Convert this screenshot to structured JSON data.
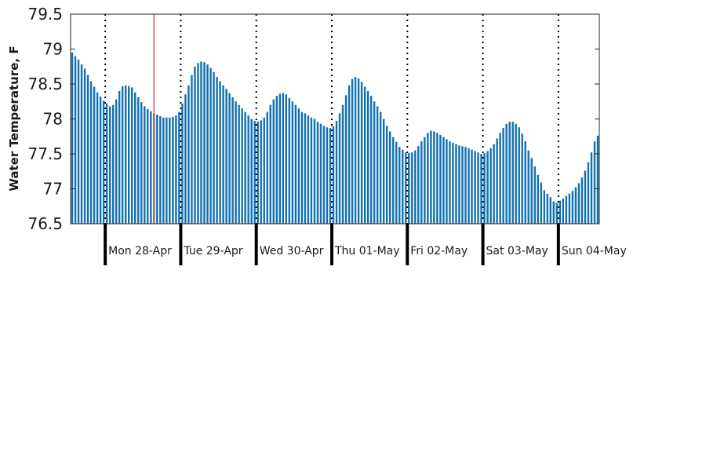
{
  "chart_data": {
    "type": "bar",
    "ylabel": "Water Temperature, F",
    "xlabel": "",
    "ylim": [
      76.5,
      79.5
    ],
    "yticks": [
      "76.5",
      "77",
      "77.5",
      "78",
      "78.5",
      "79",
      "79.5"
    ],
    "grid": false,
    "bar_color": "#1170b0",
    "marker_color": "#e05a5a",
    "day_labels": [
      "Mon 28-Apr",
      "Tue 29-Apr",
      "Wed 30-Apr",
      "Thu 01-May",
      "Fri 02-May",
      "Sat 03-May",
      "Sun 04-May"
    ],
    "points_per_day": 24,
    "leading_points": 11,
    "current_time_index": 26,
    "values": [
      78.95,
      78.9,
      78.85,
      78.78,
      78.72,
      78.63,
      78.54,
      78.46,
      78.38,
      78.32,
      78.26,
      78.22,
      78.18,
      78.2,
      78.28,
      78.4,
      78.47,
      78.48,
      78.47,
      78.45,
      78.38,
      78.31,
      78.24,
      78.18,
      78.14,
      78.11,
      78.08,
      78.06,
      78.04,
      78.02,
      78.02,
      78.02,
      78.03,
      78.05,
      78.1,
      78.22,
      78.35,
      78.48,
      78.63,
      78.75,
      78.8,
      78.82,
      78.81,
      78.78,
      78.73,
      78.67,
      78.6,
      78.54,
      78.48,
      78.43,
      78.37,
      78.31,
      78.25,
      78.2,
      78.15,
      78.1,
      78.05,
      78.0,
      77.97,
      77.96,
      77.98,
      78.02,
      78.1,
      78.2,
      78.28,
      78.33,
      78.36,
      78.37,
      78.35,
      78.3,
      78.25,
      78.2,
      78.15,
      78.1,
      78.08,
      78.05,
      78.02,
      78.0,
      77.96,
      77.93,
      77.9,
      77.88,
      77.87,
      77.9,
      77.97,
      78.08,
      78.2,
      78.34,
      78.48,
      78.57,
      78.6,
      78.58,
      78.53,
      78.46,
      78.4,
      78.33,
      78.25,
      78.18,
      78.1,
      78.0,
      77.9,
      77.82,
      77.74,
      77.67,
      77.6,
      77.56,
      77.52,
      77.51,
      77.52,
      77.55,
      77.61,
      77.68,
      77.74,
      77.8,
      77.83,
      77.82,
      77.8,
      77.77,
      77.74,
      77.71,
      77.68,
      77.66,
      77.64,
      77.62,
      77.61,
      77.6,
      77.58,
      77.56,
      77.54,
      77.52,
      77.5,
      77.51,
      77.54,
      77.58,
      77.64,
      77.72,
      77.8,
      77.87,
      77.93,
      77.96,
      77.96,
      77.93,
      77.88,
      77.79,
      77.68,
      77.55,
      77.44,
      77.32,
      77.2,
      77.09,
      76.98,
      76.93,
      76.88,
      76.82,
      76.8,
      76.83,
      76.86,
      76.9,
      76.93,
      76.97,
      77.02,
      77.08,
      77.16,
      77.26,
      77.38,
      77.52,
      77.68,
      77.76
    ]
  }
}
